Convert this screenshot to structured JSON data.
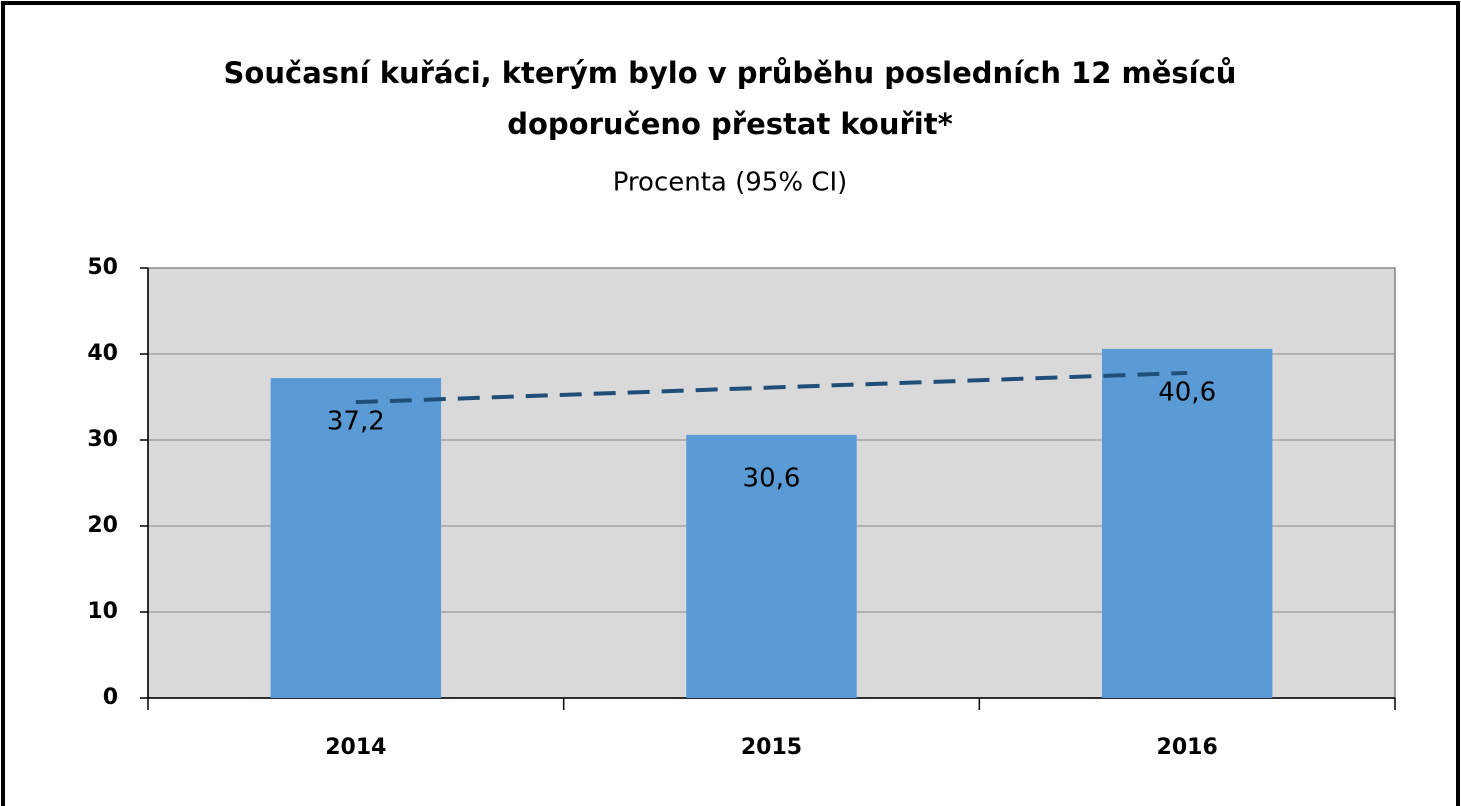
{
  "chart_data": {
    "type": "bar",
    "title": [
      "Současní kuřáci, kterým bylo v průběhu posledních 12 měsíců",
      "doporučeno přestat kouřit*"
    ],
    "subtitle": "Procenta (95% CI)",
    "categories": [
      "2014",
      "2015",
      "2016"
    ],
    "values": [
      37.2,
      30.6,
      40.6
    ],
    "value_labels": [
      "37,2",
      "30,6",
      "40,6"
    ],
    "color": "#5b9bd5",
    "trendline": {
      "values": [
        34.4,
        36.1,
        37.8
      ],
      "color": "#1f4e79",
      "dashed": true
    },
    "ylim": [
      0,
      50
    ],
    "yticks": [
      0,
      10,
      20,
      30,
      40,
      50
    ],
    "grid": true,
    "plot_background": "#d9d9d9"
  }
}
